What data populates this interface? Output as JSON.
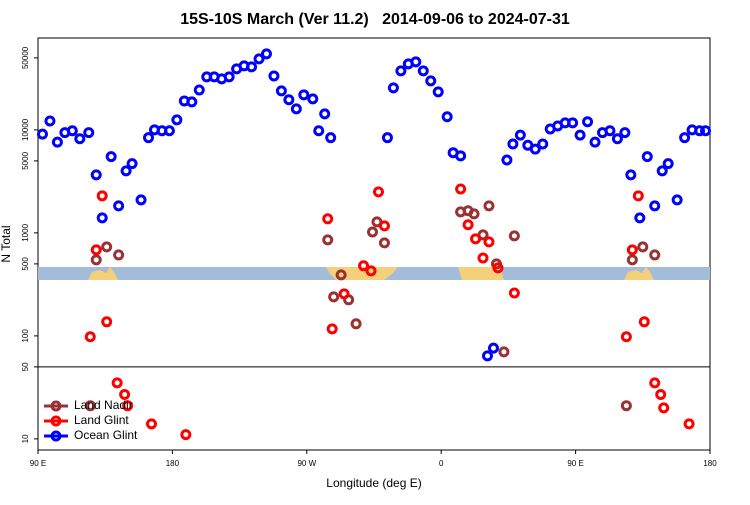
{
  "chart_data": {
    "type": "scatter",
    "title": "15S-10S March (Ver 11.2)   2014-09-06 to 2024-07-31",
    "xlabel": "Longitude (deg E)",
    "ylabel": "N Total",
    "xlim": [
      90,
      540
    ],
    "xticks": [
      {
        "value": 90,
        "label": "90 E"
      },
      {
        "value": 180,
        "label": "180"
      },
      {
        "value": 270,
        "label": "90 W"
      },
      {
        "value": 360,
        "label": "0"
      },
      {
        "value": 450,
        "label": "90 E"
      },
      {
        "value": 540,
        "label": "180"
      }
    ],
    "ylim": [
      7.8,
      78000
    ],
    "yscale": "log",
    "yticks": [
      10,
      50,
      100,
      500,
      1000,
      5000,
      10000,
      50000
    ],
    "hline": 50,
    "legend": "bottom left",
    "series": [
      {
        "name": "Land Nadir",
        "color": "#993333",
        "x": [
          125,
          129,
          136,
          144,
          284,
          293,
          288,
          298,
          303,
          314,
          317,
          322,
          373,
          378,
          382,
          388,
          392,
          397,
          402,
          409,
          484,
          488,
          495,
          503
        ],
        "values": [
          21,
          547,
          731,
          611,
          855,
          391,
          239,
          224,
          131,
          1020,
          1280,
          800,
          1600,
          1640,
          1530,
          957,
          1830,
          500,
          70,
          935,
          21,
          547,
          731,
          611
        ]
      },
      {
        "name": "Land Glint",
        "color": "#ff0000",
        "x": [
          125,
          129,
          133,
          136,
          143,
          148,
          150,
          166,
          189,
          284,
          287,
          295,
          308,
          313,
          318,
          322,
          373,
          378,
          383,
          388,
          392,
          398,
          409,
          484,
          488,
          492,
          496,
          503,
          507,
          509,
          526
        ],
        "values": [
          98,
          684,
          2290,
          137,
          35,
          27,
          21,
          14,
          11,
          1370,
          117,
          256,
          479,
          428,
          2500,
          1170,
          2670,
          1200,
          875,
          571,
          818,
          457,
          261,
          98,
          684,
          2290,
          137,
          35,
          27,
          20,
          14
        ]
      },
      {
        "name": "Ocean Glint",
        "color": "#0000ff",
        "x": [
          93,
          98,
          103,
          108,
          113,
          118,
          124,
          129,
          133,
          139,
          144,
          149,
          153,
          159,
          164,
          168,
          173,
          178,
          183,
          188,
          193,
          198,
          203,
          208,
          213,
          218,
          223,
          228,
          233,
          238,
          243,
          248,
          253,
          258,
          263,
          268,
          274,
          278,
          282,
          286,
          324,
          328,
          333,
          338,
          343,
          348,
          353,
          358,
          364,
          368,
          373,
          391,
          395,
          404,
          408,
          413,
          418,
          423,
          428,
          433,
          438,
          443,
          448,
          453,
          458,
          463,
          468,
          473,
          478,
          483,
          487,
          493,
          498,
          503,
          508,
          512,
          518,
          523,
          528,
          533,
          537
        ],
        "values": [
          9100,
          12200,
          7600,
          9400,
          9800,
          8200,
          9400,
          3660,
          1400,
          5500,
          1830,
          4000,
          4700,
          2090,
          8400,
          10000,
          9800,
          9800,
          12500,
          19100,
          18700,
          24400,
          32700,
          32700,
          31300,
          32700,
          39100,
          41800,
          40900,
          48900,
          54700,
          33400,
          23900,
          19600,
          16000,
          21900,
          20000,
          9800,
          14300,
          8400,
          8400,
          25600,
          37400,
          43700,
          45700,
          37400,
          29900,
          23400,
          13400,
          6000,
          5600,
          64,
          76,
          5100,
          7300,
          8900,
          7100,
          6500,
          7300,
          10200,
          10900,
          11700,
          11700,
          8900,
          12000,
          7600,
          9400,
          9800,
          8200,
          9400,
          3660,
          1400,
          5500,
          1830,
          4000,
          4700,
          2090,
          8400,
          10000,
          9800,
          9800
        ]
      }
    ]
  }
}
